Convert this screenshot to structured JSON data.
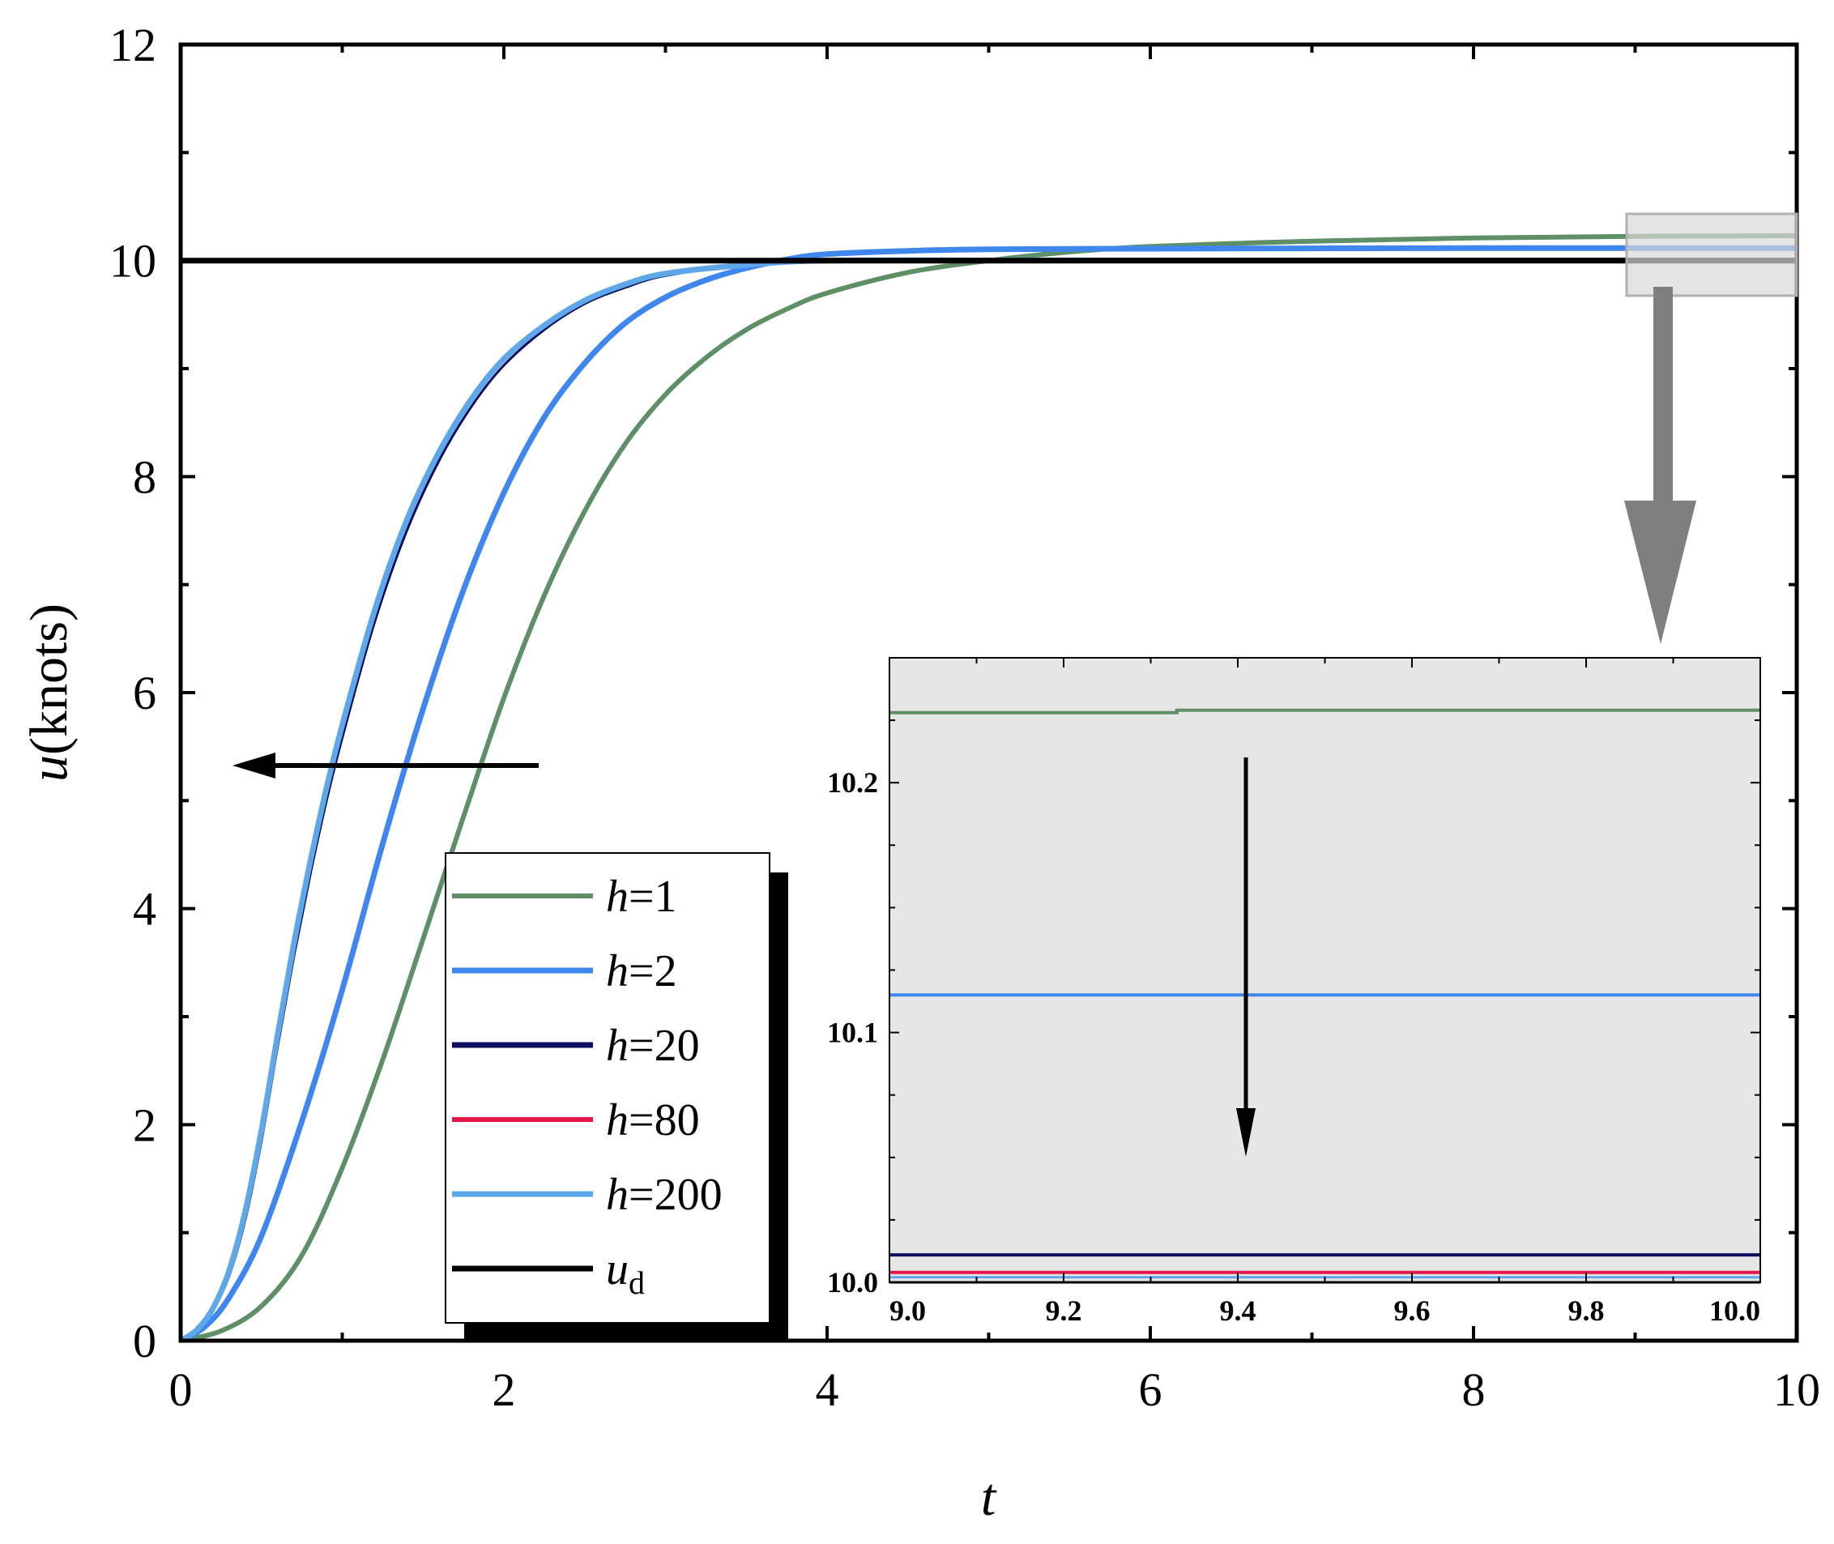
{
  "chart_data": [
    {
      "type": "line",
      "xlabel": "t",
      "ylabel_italic": "u",
      "ylabel_rest": "(knots)",
      "xlim": [
        0,
        10
      ],
      "ylim": [
        0,
        12
      ],
      "x_ticks": [
        {
          "value": 0,
          "label": "0"
        },
        {
          "value": 2,
          "label": "2"
        },
        {
          "value": 4,
          "label": "4"
        },
        {
          "value": 6,
          "label": "6"
        },
        {
          "value": 8,
          "label": "8"
        },
        {
          "value": 10,
          "label": "10"
        }
      ],
      "y_ticks": [
        {
          "value": 0,
          "label": "0"
        },
        {
          "value": 2,
          "label": "2"
        },
        {
          "value": 4,
          "label": "4"
        },
        {
          "value": 6,
          "label": "6"
        },
        {
          "value": 8,
          "label": "8"
        },
        {
          "value": 10,
          "label": "10"
        },
        {
          "value": 12,
          "label": "12"
        }
      ],
      "grid": false,
      "legend_position": "bottom-center",
      "series": [
        {
          "name_var": "h",
          "name_rest": "=1",
          "color": "#5e8f67",
          "x": [
            0,
            0.25,
            0.5,
            0.75,
            1.0,
            1.25,
            1.5,
            1.75,
            2.0,
            2.25,
            2.5,
            2.75,
            3.0,
            3.25,
            3.5,
            3.75,
            4.0,
            4.5,
            5.0,
            5.5,
            6.0,
            7.0,
            8.0,
            9.0,
            10.0
          ],
          "y": [
            0,
            0.09,
            0.32,
            0.79,
            1.6,
            2.6,
            3.72,
            4.85,
            5.95,
            6.9,
            7.68,
            8.3,
            8.76,
            9.1,
            9.36,
            9.55,
            9.7,
            9.89,
            10.0,
            10.08,
            10.13,
            10.18,
            10.21,
            10.225,
            10.23
          ]
        },
        {
          "name_var": "h",
          "name_rest": "=2",
          "color": "#3f86ee",
          "x": [
            0,
            0.15,
            0.3,
            0.5,
            0.75,
            1.0,
            1.25,
            1.5,
            1.75,
            2.0,
            2.25,
            2.5,
            2.75,
            3.0,
            3.25,
            3.5,
            3.75,
            4.0,
            4.5,
            5.0,
            6.0,
            7.0,
            8.0,
            9.0,
            10.0
          ],
          "y": [
            0,
            0.13,
            0.4,
            0.97,
            2.03,
            3.25,
            4.6,
            5.85,
            6.95,
            7.85,
            8.55,
            9.05,
            9.42,
            9.66,
            9.82,
            9.93,
            10.01,
            10.06,
            10.09,
            10.105,
            10.11,
            10.113,
            10.115,
            10.115,
            10.115
          ]
        },
        {
          "name_var": "h",
          "name_rest": "=20",
          "color": "#0b0e5e",
          "x": [
            0,
            0.1,
            0.2,
            0.3,
            0.4,
            0.5,
            0.6,
            0.7,
            0.8,
            0.9,
            1.0,
            1.2,
            1.4,
            1.6,
            1.8,
            2.0,
            2.25,
            2.5,
            2.75,
            3.0,
            3.5,
            4.0,
            5.0,
            7.0,
            10.0
          ],
          "y": [
            0,
            0.1,
            0.28,
            0.6,
            1.12,
            1.85,
            2.72,
            3.55,
            4.3,
            4.98,
            5.58,
            6.65,
            7.5,
            8.15,
            8.65,
            9.03,
            9.36,
            9.6,
            9.75,
            9.86,
            9.96,
            10.0,
            10.01,
            10.01,
            10.01
          ]
        },
        {
          "name_var": "h",
          "name_rest": "=80",
          "color": "#e4174a",
          "x": [
            0,
            0.1,
            0.2,
            0.3,
            0.4,
            0.5,
            0.6,
            0.7,
            0.8,
            0.9,
            1.0,
            1.2,
            1.4,
            1.6,
            1.8,
            2.0,
            2.25,
            2.5,
            2.75,
            3.0,
            3.5,
            4.0,
            5.0,
            7.0,
            10.0
          ],
          "y": [
            0,
            0.1,
            0.3,
            0.63,
            1.17,
            1.92,
            2.8,
            3.63,
            4.38,
            5.06,
            5.66,
            6.72,
            7.56,
            8.2,
            8.7,
            9.07,
            9.39,
            9.62,
            9.77,
            9.87,
            9.96,
            10.0,
            10.004,
            10.004,
            10.004
          ]
        },
        {
          "name_var": "h",
          "name_rest": "=200",
          "color": "#5ea8ea",
          "x": [
            0,
            0.1,
            0.2,
            0.3,
            0.4,
            0.5,
            0.6,
            0.7,
            0.8,
            0.9,
            1.0,
            1.2,
            1.4,
            1.6,
            1.8,
            2.0,
            2.25,
            2.5,
            2.75,
            3.0,
            3.5,
            4.0,
            5.0,
            7.0,
            10.0
          ],
          "y": [
            0,
            0.1,
            0.3,
            0.65,
            1.2,
            1.95,
            2.83,
            3.67,
            4.42,
            5.1,
            5.7,
            6.76,
            7.6,
            8.23,
            8.72,
            9.09,
            9.4,
            9.63,
            9.78,
            9.88,
            9.96,
            10.0,
            10.002,
            10.002,
            10.002
          ]
        },
        {
          "name_var": "u",
          "name_sub": "d",
          "color": "#000000",
          "x": [
            0,
            10
          ],
          "y": [
            10,
            10
          ]
        }
      ]
    },
    {
      "type": "line",
      "inset": true,
      "xlim": [
        9.0,
        10.0
      ],
      "ylim": [
        10.0,
        10.25
      ],
      "x_ticks": [
        {
          "value": 9.0,
          "label": "9.0"
        },
        {
          "value": 9.2,
          "label": "9.2"
        },
        {
          "value": 9.4,
          "label": "9.4"
        },
        {
          "value": 9.6,
          "label": "9.6"
        },
        {
          "value": 9.8,
          "label": "9.8"
        },
        {
          "value": 10.0,
          "label": "10.0"
        }
      ],
      "y_ticks": [
        {
          "value": 10.0,
          "label": "10.0"
        },
        {
          "value": 10.1,
          "label": "10.1"
        },
        {
          "value": 10.2,
          "label": "10.2"
        }
      ],
      "series": [
        {
          "color": "#5e8f67",
          "x": [
            9.0,
            9.33,
            9.33,
            10.0
          ],
          "y": [
            10.228,
            10.228,
            10.229,
            10.229
          ]
        },
        {
          "color": "#3f86ee",
          "x": [
            9.0,
            10.0
          ],
          "y": [
            10.115,
            10.115
          ]
        },
        {
          "color": "#0b0e5e",
          "x": [
            9.0,
            10.0
          ],
          "y": [
            10.011,
            10.011
          ]
        },
        {
          "color": "#e4174a",
          "x": [
            9.0,
            10.0
          ],
          "y": [
            10.004,
            10.004
          ]
        },
        {
          "color": "#5ea8ea",
          "x": [
            9.0,
            10.0
          ],
          "y": [
            10.002,
            10.002
          ]
        },
        {
          "color": "#000000",
          "x": [
            9.0,
            10.0
          ],
          "y": [
            10.0,
            10.0
          ]
        }
      ],
      "annotation": "downward arrow indicating values decrease as h increases"
    }
  ],
  "annotations": {
    "main_arrow": "left-pointing arrow indicating faster response as h increases",
    "zoom_arrow": "grey arrow from zoom box (t 9-10) to inset",
    "zoom_box_x": [
      9.0,
      10.0
    ],
    "zoom_box_y": [
      9.65,
      10.42
    ]
  }
}
